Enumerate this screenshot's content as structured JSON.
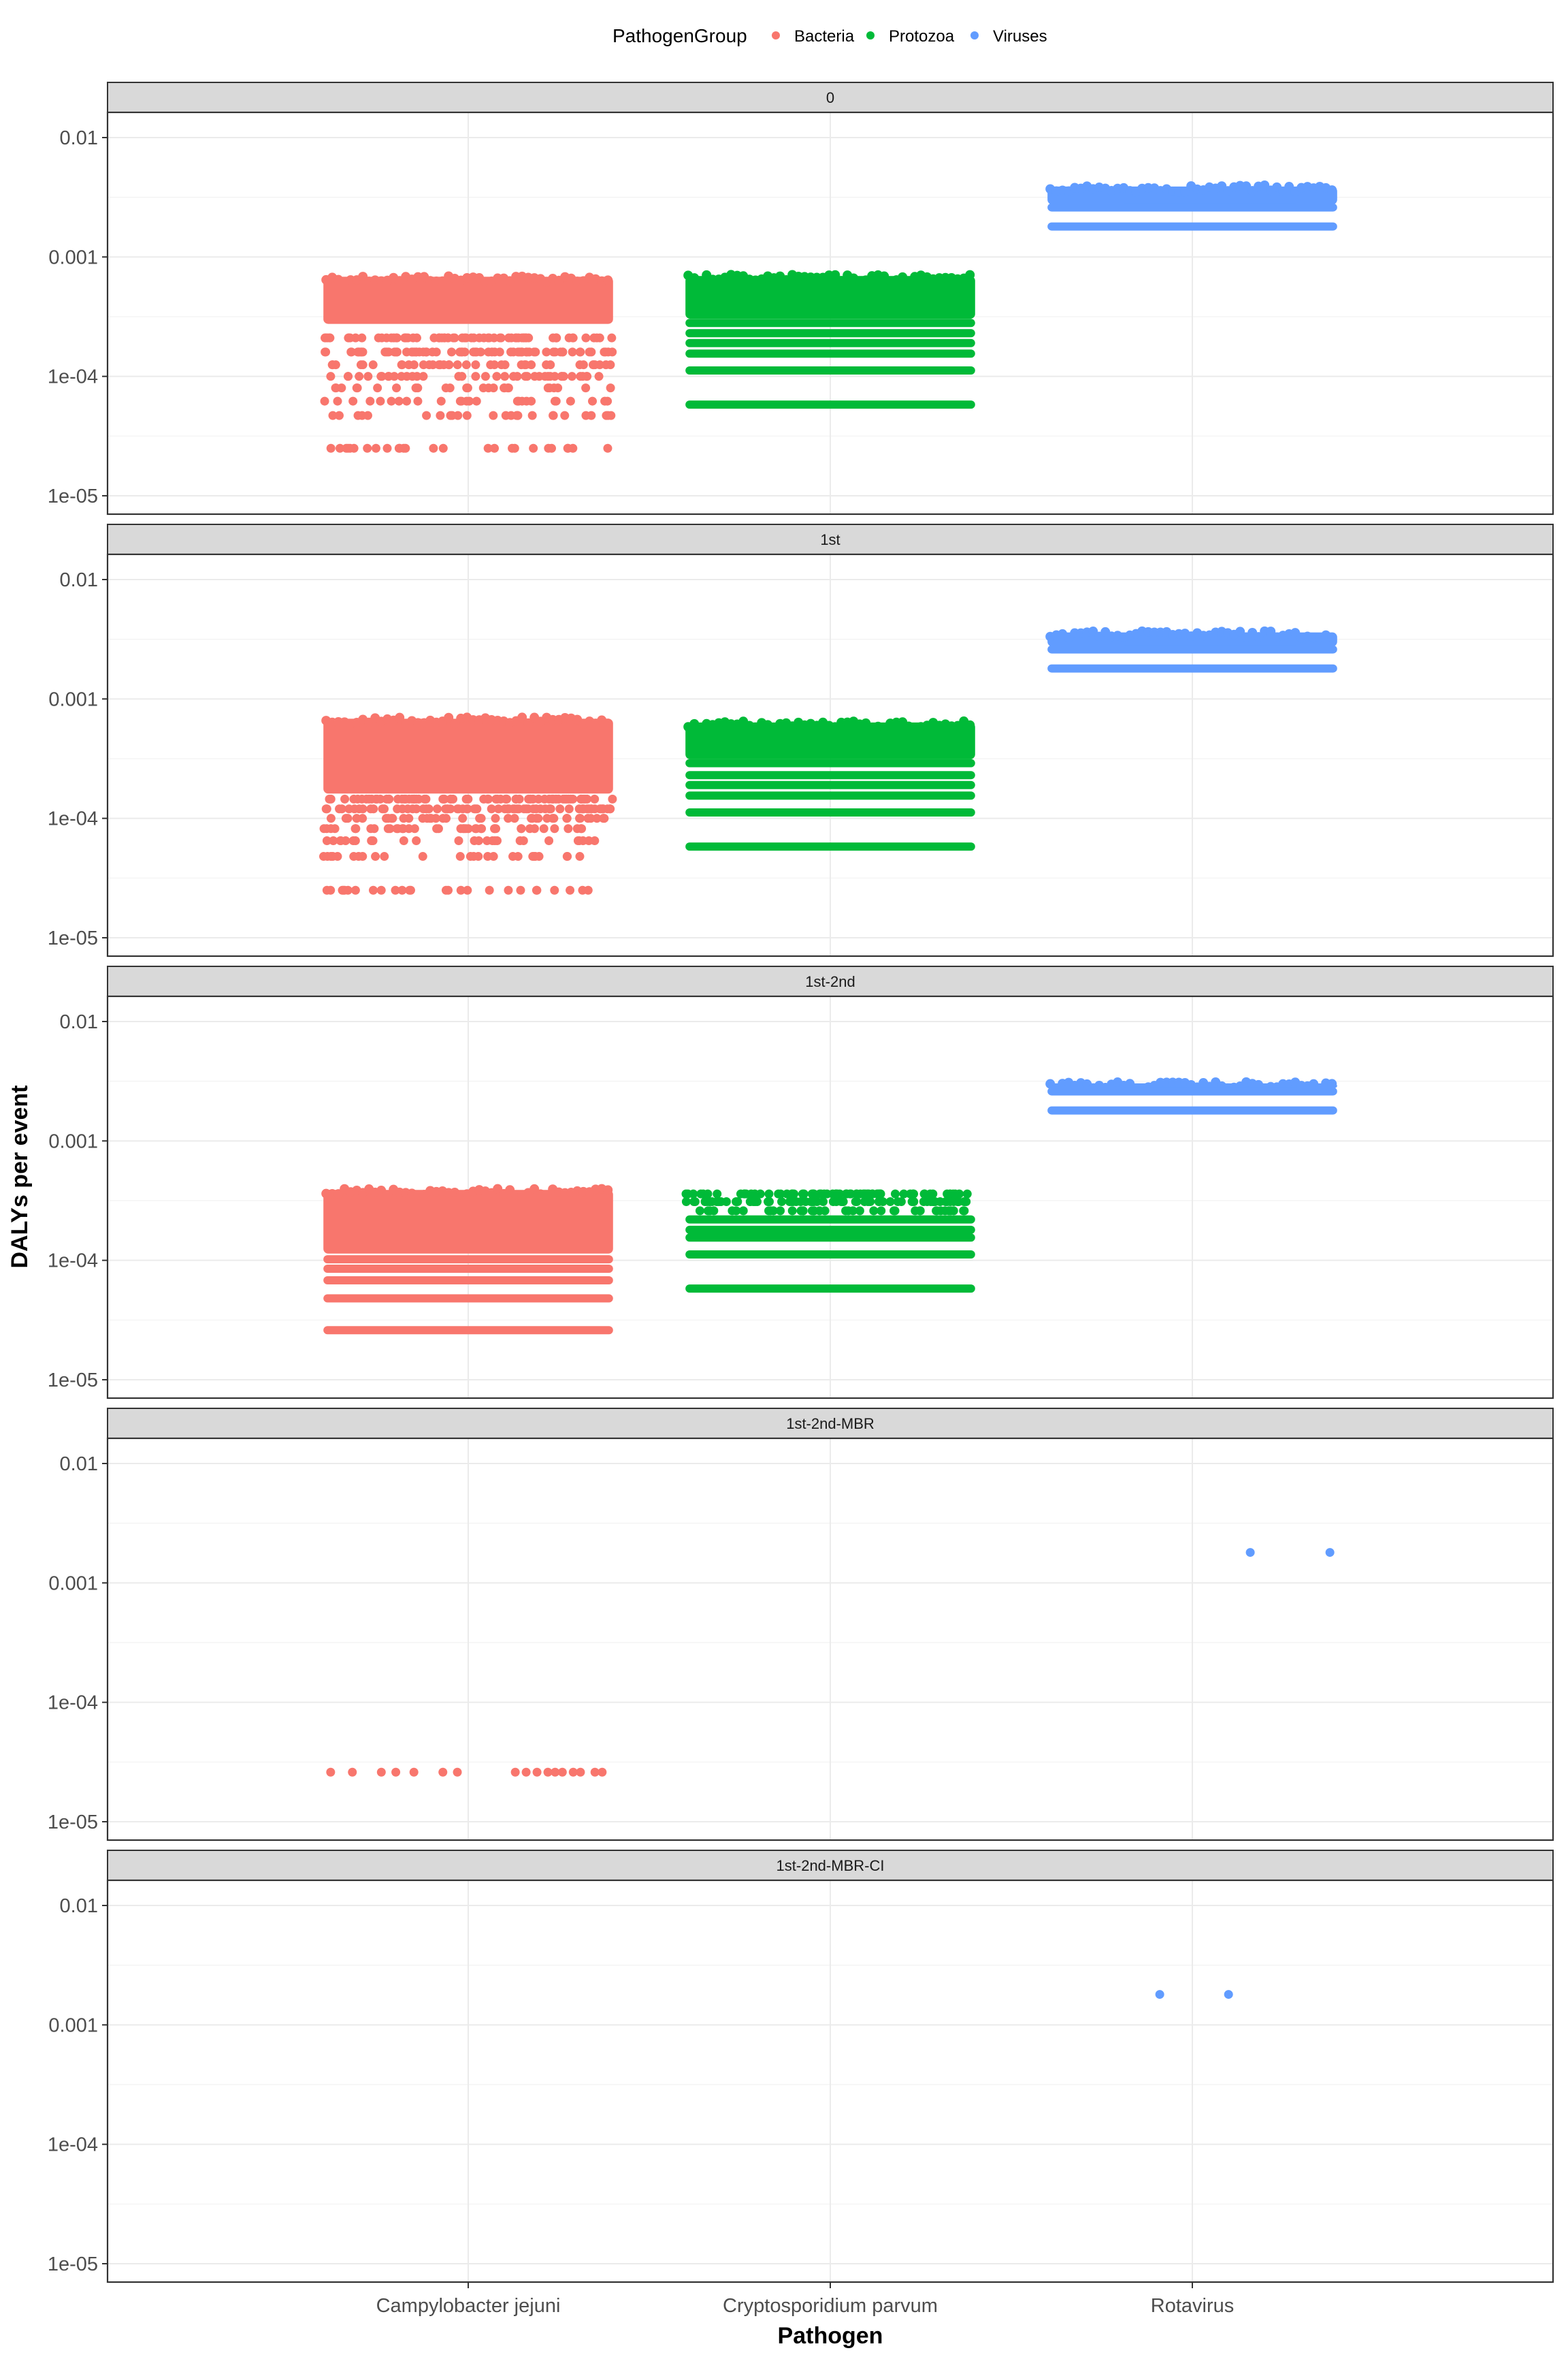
{
  "chart_data": {
    "type": "scatter",
    "xlabel": "Pathogen",
    "ylabel": "DALYs per event",
    "y_scale": "log10",
    "ylim": [
      1e-05,
      0.0125
    ],
    "y_ticks": [
      {
        "value": 0.01,
        "label": "0.01"
      },
      {
        "value": 0.001,
        "label": "0.001"
      },
      {
        "value": 0.0001,
        "label": "1e-04"
      },
      {
        "value": 1e-05,
        "label": "1e-05"
      }
    ],
    "categories": [
      "Campylobacter jejuni",
      "Cryptosporidium parvum",
      "Rotavirus"
    ],
    "grid": true,
    "legend": {
      "title": "PathogenGroup",
      "position": "top",
      "entries": [
        {
          "name": "Bacteria",
          "color": "#F8766D"
        },
        {
          "name": "Protozoa",
          "color": "#00BA38"
        },
        {
          "name": "Viruses",
          "color": "#619CFF"
        }
      ]
    },
    "jitter_width": 0.4,
    "panels": [
      {
        "label": "0",
        "series": [
          {
            "group": "Bacteria",
            "category": "Campylobacter jejuni",
            "bands": [
              {
                "min": 0.00029,
                "max": 0.00072
              }
            ],
            "sparse": [
              0.00021,
              0.00016,
              0.000125,
              0.0001,
              8e-05,
              6.2e-05,
              4.7e-05,
              2.5e-05
            ]
          },
          {
            "group": "Protozoa",
            "category": "Cryptosporidium parvum",
            "bands": [
              {
                "min": 0.00032,
                "max": 0.00073
              }
            ],
            "levels": [
              0.00028,
              0.00023,
              0.00019,
              0.000155,
              0.000112,
              5.8e-05
            ]
          },
          {
            "group": "Viruses",
            "category": "Rotavirus",
            "bands": [
              {
                "min": 0.0029,
                "max": 0.0041
              }
            ],
            "levels": [
              0.0026,
              0.0018
            ]
          }
        ]
      },
      {
        "label": "1st",
        "series": [
          {
            "group": "Bacteria",
            "category": "Campylobacter jejuni",
            "bands": [
              {
                "min": 0.00017,
                "max": 0.00072
              }
            ],
            "sparse": [
              0.000145,
              0.00012,
              0.0001,
              8.2e-05,
              6.5e-05,
              4.8e-05,
              2.5e-05
            ]
          },
          {
            "group": "Protozoa",
            "category": "Cryptosporidium parvum",
            "bands": [
              {
                "min": 0.00033,
                "max": 0.00067
              }
            ],
            "levels": [
              0.00029,
              0.00023,
              0.00019,
              0.000155,
              0.000112,
              5.8e-05
            ]
          },
          {
            "group": "Viruses",
            "category": "Rotavirus",
            "bands": [
              {
                "min": 0.0029,
                "max": 0.0038
              }
            ],
            "levels": [
              0.0026,
              0.0018
            ]
          }
        ]
      },
      {
        "label": "1st-2nd",
        "series": [
          {
            "group": "Bacteria",
            "category": "Campylobacter jejuni",
            "bands": [
              {
                "min": 0.00012,
                "max": 0.00041
              }
            ],
            "levels": [
              0.000102,
              8.5e-05,
              6.8e-05,
              4.8e-05,
              2.6e-05
            ]
          },
          {
            "group": "Protozoa",
            "category": "Cryptosporidium parvum",
            "bands": [],
            "sparse": [
              0.00036,
              0.00031,
              0.00026
            ],
            "levels": [
              0.00022,
              0.00018,
              0.000155,
              0.000112,
              5.8e-05
            ]
          },
          {
            "group": "Viruses",
            "category": "Rotavirus",
            "bands": [
              {
                "min": 0.0029,
                "max": 0.0032
              }
            ],
            "levels": [
              0.0026,
              0.0018
            ]
          }
        ]
      },
      {
        "label": "1st-2nd-MBR",
        "series": [
          {
            "group": "Bacteria",
            "category": "Campylobacter jejuni",
            "points_x_offset": [
              -0.38,
              -0.32,
              -0.24,
              -0.2,
              -0.15,
              -0.07,
              -0.03,
              0.13,
              0.16,
              0.19,
              0.22,
              0.24,
              0.26,
              0.29,
              0.31,
              0.35,
              0.37
            ],
            "points_y": 2.6e-05
          },
          {
            "group": "Viruses",
            "category": "Rotavirus",
            "points_x_offset": [
              0.16,
              0.38
            ],
            "points_y": 0.0018
          }
        ]
      },
      {
        "label": "1st-2nd-MBR-CI",
        "series": [
          {
            "group": "Viruses",
            "category": "Rotavirus",
            "points_x_offset": [
              -0.09,
              0.1
            ],
            "points_y": 0.0018
          }
        ]
      }
    ]
  }
}
